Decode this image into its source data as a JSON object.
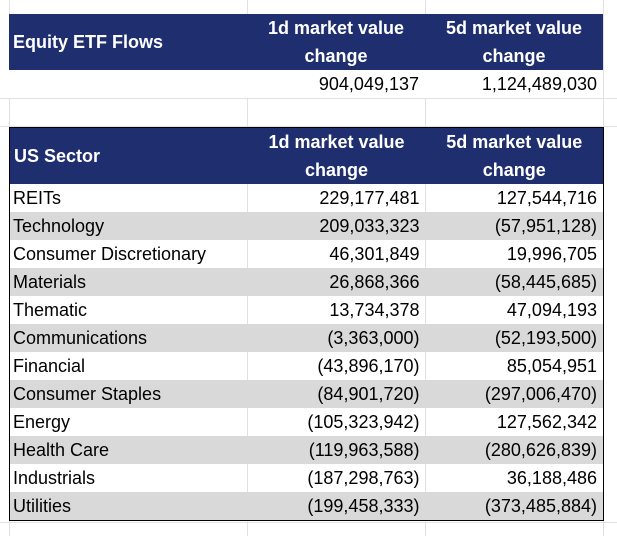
{
  "equity_table": {
    "title": "Equity ETF Flows",
    "col1_header_line1": "1d market value",
    "col1_header_line2": "change",
    "col2_header_line1": "5d market value",
    "col2_header_line2": "change",
    "value_1d": "904,049,137",
    "value_5d": "1,124,489,030"
  },
  "sector_table": {
    "title": "US Sector",
    "col1_header_line1": "1d market value",
    "col1_header_line2": "change",
    "col2_header_line1": "5d market value",
    "col2_header_line2": "change",
    "rows": [
      {
        "sector": "REITs",
        "d1": "229,177,481",
        "d5": "127,544,716"
      },
      {
        "sector": "Technology",
        "d1": "209,033,323",
        "d5": "(57,951,128)"
      },
      {
        "sector": "Consumer Discretionary",
        "d1": "46,301,849",
        "d5": "19,996,705"
      },
      {
        "sector": "Materials",
        "d1": "26,868,366",
        "d5": "(58,445,685)"
      },
      {
        "sector": "Thematic",
        "d1": "13,734,378",
        "d5": "47,094,193"
      },
      {
        "sector": "Communications",
        "d1": "(3,363,000)",
        "d5": "(52,193,500)"
      },
      {
        "sector": "Financial",
        "d1": "(43,896,170)",
        "d5": "85,054,951"
      },
      {
        "sector": "Consumer Staples",
        "d1": "(84,901,720)",
        "d5": "(297,006,470)"
      },
      {
        "sector": "Energy",
        "d1": "(105,323,942)",
        "d5": "127,562,342"
      },
      {
        "sector": "Health Care",
        "d1": "(119,963,588)",
        "d5": "(280,626,839)"
      },
      {
        "sector": "Industrials",
        "d1": "(187,298,763)",
        "d5": "36,188,486"
      },
      {
        "sector": "Utilities",
        "d1": "(199,458,333)",
        "d5": "(373,485,884)"
      }
    ]
  },
  "colors": {
    "header_bg": "#1f2e6e",
    "header_text": "#ffffff",
    "shade_row": "#d9d9d9"
  }
}
